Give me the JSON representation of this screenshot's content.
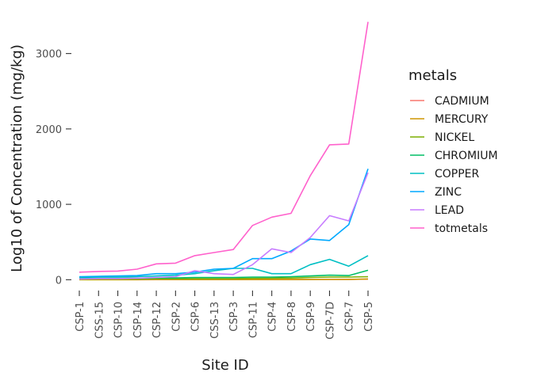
{
  "chart_data": {
    "type": "line",
    "title": "",
    "xlabel": "Site ID",
    "ylabel": "Log10 of Concentration (mg/kg)",
    "categories": [
      "CSP-1",
      "CSS-15",
      "CSP-10",
      "CSP-14",
      "CSP-12",
      "CSP-2",
      "CSP-6",
      "CSS-13",
      "CSP-3",
      "CSP-11",
      "CSP-4",
      "CSP-8",
      "CSP-9",
      "CSP-7D",
      "CSP-7",
      "CSP-5"
    ],
    "ylim": [
      -70,
      3500
    ],
    "yticks": [
      0,
      1000,
      2000,
      3000
    ],
    "ytick_labels": [
      "0",
      "1000",
      "2000",
      "3000"
    ],
    "grid": false,
    "legend_title": "metals",
    "legend_position": "right",
    "series": [
      {
        "name": "CADMIUM",
        "color": "#F8766D",
        "values": [
          1,
          1,
          1,
          1,
          1,
          1,
          2,
          1,
          2,
          2,
          2,
          2,
          3,
          3,
          5,
          8
        ]
      },
      {
        "name": "MERCURY",
        "color": "#CD9600",
        "values": [
          0.5,
          0.5,
          0.5,
          0.5,
          1,
          1,
          1,
          1,
          1,
          2,
          2,
          2,
          2,
          3,
          3,
          10
        ]
      },
      {
        "name": "NICKEL",
        "color": "#7CAE00",
        "values": [
          8,
          9,
          10,
          10,
          12,
          12,
          15,
          15,
          15,
          18,
          20,
          22,
          30,
          35,
          35,
          40
        ]
      },
      {
        "name": "CHROMIUM",
        "color": "#00BE67",
        "values": [
          15,
          18,
          18,
          20,
          25,
          25,
          30,
          30,
          30,
          35,
          35,
          40,
          50,
          60,
          55,
          125
        ]
      },
      {
        "name": "COPPER",
        "color": "#00BFC4",
        "values": [
          30,
          35,
          35,
          40,
          50,
          60,
          80,
          120,
          150,
          150,
          80,
          80,
          200,
          270,
          180,
          320
        ]
      },
      {
        "name": "ZINC",
        "color": "#00A9FF",
        "values": [
          40,
          45,
          50,
          55,
          80,
          80,
          100,
          140,
          150,
          280,
          280,
          380,
          540,
          520,
          730,
          1470
        ]
      },
      {
        "name": "LEAD",
        "color": "#C77CFF",
        "values": [
          10,
          15,
          15,
          20,
          30,
          40,
          120,
          80,
          70,
          200,
          410,
          360,
          560,
          850,
          780,
          1420
        ]
      },
      {
        "name": "totmetals",
        "color": "#FF61CC",
        "values": [
          100,
          110,
          115,
          140,
          210,
          220,
          320,
          360,
          400,
          720,
          830,
          880,
          1380,
          1790,
          1800,
          3420
        ]
      }
    ]
  }
}
